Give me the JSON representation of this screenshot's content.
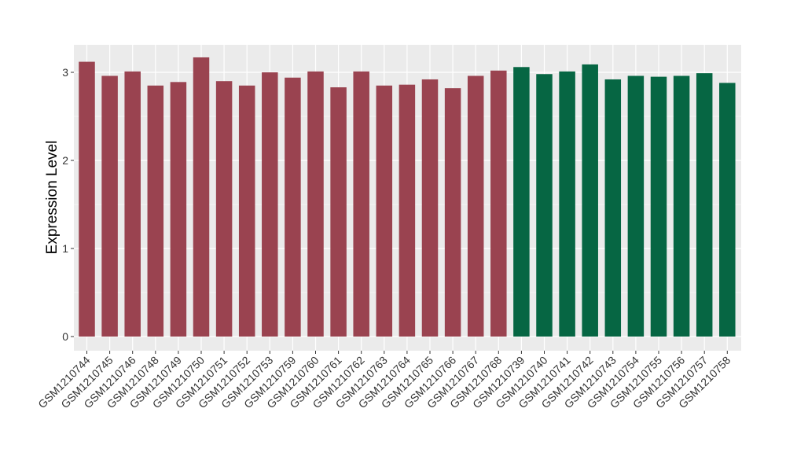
{
  "chart_data": {
    "type": "bar",
    "title": "",
    "xlabel": "",
    "ylabel": "Expression Level",
    "ylim": [
      0,
      3.3
    ],
    "yticks": [
      0,
      1,
      2,
      3
    ],
    "ytick_labels": [
      "0",
      "1",
      "2",
      "3"
    ],
    "grid": true,
    "legend": "none",
    "colors": {
      "group1": "#9a4350",
      "group2": "#066643",
      "panel_bg": "#ebebeb",
      "grid": "#ffffff"
    },
    "categories": [
      "GSM1210744",
      "GSM1210745",
      "GSM1210746",
      "GSM1210748",
      "GSM1210749",
      "GSM1210750",
      "GSM1210751",
      "GSM1210752",
      "GSM1210753",
      "GSM1210759",
      "GSM1210760",
      "GSM1210761",
      "GSM1210762",
      "GSM1210763",
      "GSM1210764",
      "GSM1210765",
      "GSM1210766",
      "GSM1210767",
      "GSM1210768",
      "GSM1210739",
      "GSM1210740",
      "GSM1210741",
      "GSM1210742",
      "GSM1210743",
      "GSM1210754",
      "GSM1210755",
      "GSM1210756",
      "GSM1210757",
      "GSM1210758"
    ],
    "values": [
      3.12,
      2.96,
      3.01,
      2.85,
      2.89,
      3.17,
      2.9,
      2.85,
      3.0,
      2.94,
      3.01,
      2.83,
      3.01,
      2.85,
      2.86,
      2.92,
      2.82,
      2.96,
      3.02,
      3.06,
      2.98,
      3.01,
      3.09,
      2.92,
      2.96,
      2.95,
      2.96,
      2.99,
      2.88
    ],
    "groups": [
      1,
      1,
      1,
      1,
      1,
      1,
      1,
      1,
      1,
      1,
      1,
      1,
      1,
      1,
      1,
      1,
      1,
      1,
      1,
      2,
      2,
      2,
      2,
      2,
      2,
      2,
      2,
      2,
      2
    ]
  }
}
